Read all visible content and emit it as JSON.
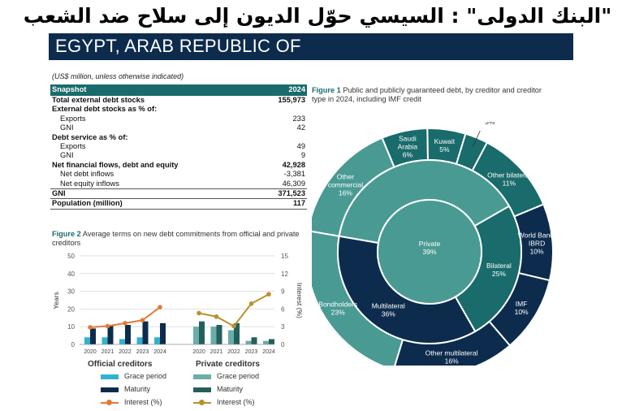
{
  "headline": "\"البنك الدولى\" : السيسي حوّل الديون إلى سلاح ضد الشعب",
  "country": "EGYPT, ARAB REPUBLIC OF",
  "units_note": "(US$ million, unless otherwise indicated)",
  "snapshot": {
    "title": "Snapshot",
    "year": "2024",
    "rows": [
      {
        "label": "Total external debt stocks",
        "value": "155,973",
        "bold": true,
        "indent": false,
        "sep": false
      },
      {
        "label": "External debt stocks as % of:",
        "value": "",
        "bold": true,
        "indent": false,
        "sep": false
      },
      {
        "label": "Exports",
        "value": "233",
        "bold": false,
        "indent": true,
        "sep": false
      },
      {
        "label": "GNI",
        "value": "42",
        "bold": false,
        "indent": true,
        "sep": false
      },
      {
        "label": "Debt service as % of:",
        "value": "",
        "bold": true,
        "indent": false,
        "sep": false
      },
      {
        "label": "Exports",
        "value": "49",
        "bold": false,
        "indent": true,
        "sep": false
      },
      {
        "label": "GNI",
        "value": "9",
        "bold": false,
        "indent": true,
        "sep": false
      },
      {
        "label": "Net financial flows, debt and equity",
        "value": "42,928",
        "bold": true,
        "indent": false,
        "sep": false
      },
      {
        "label": "Net debt inflows",
        "value": "-3,381",
        "bold": false,
        "indent": true,
        "sep": false
      },
      {
        "label": "Net equity inflows",
        "value": "46,309",
        "bold": false,
        "indent": true,
        "sep": true
      },
      {
        "label": "GNI",
        "value": "371,523",
        "bold": true,
        "indent": false,
        "sep": true
      },
      {
        "label": "Population (million)",
        "value": "117",
        "bold": true,
        "indent": false,
        "sep": true
      }
    ]
  },
  "figure1": {
    "caption_label": "Figure 1",
    "caption_text": "Public and publicly guaranteed debt, by creditor and creditor type in 2024, including IMF credit"
  },
  "figure2": {
    "caption_label": "Figure 2",
    "caption_text": "Average terms on new debt commitments from official and private creditors",
    "group_official": "Official creditors",
    "group_private": "Private creditors",
    "legend_grace": "Grace period",
    "legend_maturity": "Maturity",
    "legend_interest": "Interest (%)"
  },
  "colors": {
    "navy": "#0d2c4d",
    "teal": "#1a6b6b",
    "teal_light": "#4a9a94",
    "orange": "#e07b39",
    "gold": "#b8922a",
    "cyan": "#2fb3d1",
    "dark_teal_bar": "#245f5c",
    "light_teal_bar": "#69aea8"
  },
  "chart_data": [
    {
      "type": "pie",
      "title": "Public and publicly guaranteed debt, by creditor and creditor type in 2024, including IMF credit",
      "inner": {
        "labels": [
          "Private",
          "Bilateral",
          "Multilateral"
        ],
        "values": [
          39,
          25,
          36
        ],
        "pct_labels": [
          "39%",
          "25%",
          "36%"
        ]
      },
      "outer": {
        "labels": [
          "Other commercial",
          "Saudi Arabia",
          "Kuwait",
          "Russian Federation",
          "Other bilateral",
          "World Bank-IBRD",
          "IMF",
          "Other multilateral",
          "Bondholders"
        ],
        "values": [
          16,
          6,
          5,
          3,
          11,
          10,
          10,
          16,
          23
        ],
        "pct_labels": [
          "16%",
          "6%",
          "5%",
          "3%",
          "11%",
          "10%",
          "10%",
          "16%",
          "23%"
        ]
      }
    },
    {
      "type": "bar",
      "title": "Average terms on new debt commitments from official and private creditors",
      "ylabel": "Years",
      "y2label": "Interest (%)",
      "ylim": [
        0,
        50
      ],
      "y2lim": [
        0,
        15
      ],
      "yticks": [
        "0",
        "10",
        "20",
        "30",
        "40",
        "50"
      ],
      "y2ticks": [
        "0",
        "3",
        "6",
        "9",
        "12",
        "15"
      ],
      "categories": [
        "2020",
        "2021",
        "2022",
        "2023",
        "2024"
      ],
      "groups": [
        {
          "name": "Official creditors",
          "series": [
            {
              "name": "Grace period",
              "values": [
                4,
                4,
                3,
                4,
                4
              ]
            },
            {
              "name": "Maturity",
              "values": [
                9,
                11,
                11,
                13,
                12
              ]
            },
            {
              "name": "Interest (%)",
              "values": [
                2.9,
                3.1,
                3.6,
                4.1,
                6.3
              ]
            }
          ]
        },
        {
          "name": "Private creditors",
          "series": [
            {
              "name": "Grace period",
              "values": [
                10,
                10,
                8,
                2,
                2
              ]
            },
            {
              "name": "Maturity",
              "values": [
                13,
                11,
                12,
                4,
                3
              ]
            },
            {
              "name": "Interest (%)",
              "values": [
                5.3,
                4.7,
                3.1,
                6.9,
                8.5
              ]
            }
          ]
        }
      ]
    }
  ]
}
